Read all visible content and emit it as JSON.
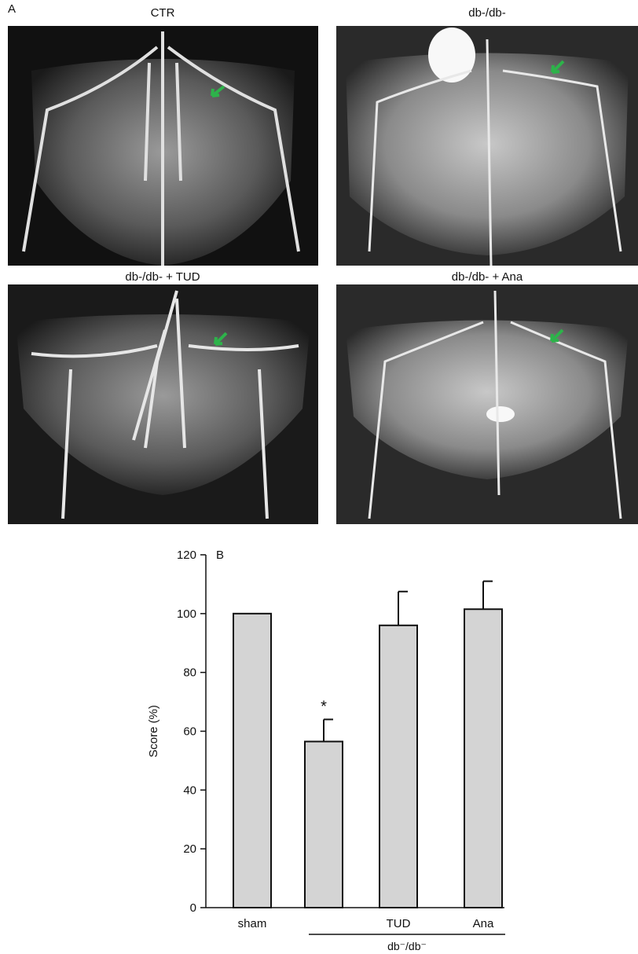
{
  "panel_a": {
    "letter": "A",
    "titles": [
      "CTR",
      "db-/db-",
      "db-/db- + TUD",
      "db-/db- + Ana"
    ]
  },
  "chart_data": {
    "type": "bar",
    "panel_letter": "B",
    "y_label": "Score (%)",
    "categories": [
      "sham",
      null,
      "TUD",
      "Ana"
    ],
    "values": [
      100,
      56.5,
      96,
      101.5
    ],
    "errors": [
      null,
      7.5,
      11.5,
      9.5
    ],
    "annotations": [
      null,
      "*",
      null,
      null
    ],
    "group_label": "db⁻/db⁻",
    "color": "#d4d4d4",
    "ylim": [
      0,
      120
    ],
    "yticks": [
      0,
      20,
      40,
      60,
      80,
      100,
      120
    ]
  }
}
